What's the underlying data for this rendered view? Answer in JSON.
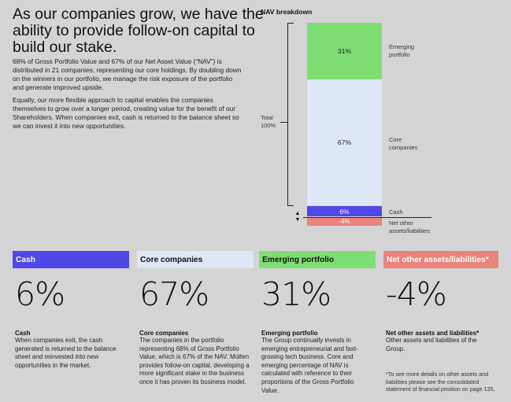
{
  "headline": "As our companies grow, we have the ability to provide follow-on capital to build our stake.",
  "intro": {
    "p1": "68% of Gross Portfolio Value and 67% of our Net Asset Value (“NAV”) is distributed in 21 companies, representing our core holdings. By doubling down on the winners in our portfolio, we manage the risk exposure of the portfolio and generate improved upside.",
    "p2": "Equally, our more flexible approach to capital enables the companies themselves to grow over a longer period, creating value for the benefit of our Shareholders. When companies exit, cash is returned to the balance sheet so we can invest it into new opportunities."
  },
  "chart_data": {
    "type": "bar",
    "title": "NAV breakdown",
    "total_label_line1": "Total",
    "total_label_line2": "100%",
    "categories": [
      "Emerging portfolio",
      "Core companies",
      "Cash",
      "Net other assets/liabilities"
    ],
    "values": [
      31,
      67,
      6,
      -4
    ],
    "value_labels": [
      "31%",
      "67%",
      "6%",
      "-4%"
    ],
    "segment_labels": {
      "emerging_l1": "Emerging",
      "emerging_l2": "portfolio",
      "core_l1": "Core",
      "core_l2": "companies",
      "cash": "Cash",
      "net_l1": "Net other",
      "net_l2": "assets/liabilities"
    },
    "colors": {
      "emerging": "#7fde73",
      "core": "#dde7f6",
      "cash": "#5047e6",
      "net": "#e9837c"
    },
    "arrow_up": "▲",
    "arrow_down": "▼"
  },
  "cards": [
    {
      "header": "Cash",
      "big": "6%",
      "title": "Cash",
      "body": "When companies exit, the cash generated is returned to the balance sheet and reinvested into new opportunities in the market."
    },
    {
      "header": "Core companies",
      "big": "67%",
      "title": "Core companies",
      "body": "The companies in the portfolio representing 68% of Gross Portfolio Value, which is 67% of the NAV. Molten provides follow-on capital, developing a more significant stake in the business once it has proven its business model."
    },
    {
      "header": "Emerging portfolio",
      "big": "31%",
      "title": "Emerging portfolio",
      "body": "The Group continually invests in emerging entrepreneurial and fast-growing tech business. Core and emerging percentage of NAV is calculated with reference to their proportions of the Gross Portfolio Value."
    },
    {
      "header": "Net other assets/liabilities*",
      "big": "-4%",
      "title": "Net other assets and liabilities*",
      "body": "Other assets and liabilities of the Group.",
      "footnote": "*To see more details on other assets and liabilities please see the consolidated statement of financial position on page 135."
    }
  ]
}
